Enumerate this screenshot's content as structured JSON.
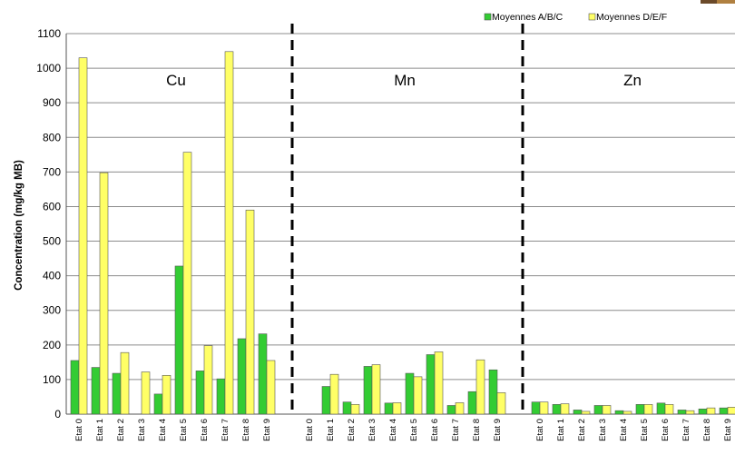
{
  "chart_data": {
    "type": "bar",
    "ylabel": "Concentration (mg/kg MB)",
    "xlabel": "",
    "ylim": [
      0,
      1100
    ],
    "y_ticks": [
      0,
      100,
      200,
      300,
      400,
      500,
      600,
      700,
      800,
      900,
      1000,
      1100
    ],
    "grid": true,
    "legend_position": "top-right",
    "colors": {
      "series_a": "#33cc33",
      "series_b": "#ffff66",
      "bar_stroke": "#555555",
      "grid": "#8c8c8c",
      "separator": "#000000"
    },
    "categories": [
      "Etat 0",
      "Etat 1",
      "Etat 2",
      "Etat 3",
      "Etat 4",
      "Etat 5",
      "Etat 6",
      "Etat 7",
      "Etat 8",
      "Etat 9"
    ],
    "groups": [
      {
        "name": "Cu",
        "series": [
          {
            "name": "Moyennes A/B/C",
            "values": [
              155,
              135,
              118,
              0,
              58,
              428,
              125,
              102,
              218,
              232
            ]
          },
          {
            "name": "Moyennes D/E/F",
            "values": [
              1030,
              698,
              178,
              122,
              112,
              757,
              198,
              1048,
              590,
              155
            ]
          }
        ]
      },
      {
        "name": "Mn",
        "series": [
          {
            "name": "Moyennes A/B/C",
            "values": [
              0,
              80,
              35,
              138,
              32,
              118,
              172,
              25,
              65,
              128
            ]
          },
          {
            "name": "Moyennes D/E/F",
            "values": [
              0,
              115,
              28,
              143,
              33,
              108,
              180,
              33,
              157,
              62
            ]
          }
        ]
      },
      {
        "name": "Zn",
        "series": [
          {
            "name": "Moyennes A/B/C",
            "values": [
              35,
              28,
              12,
              25,
              10,
              28,
              32,
              12,
              15,
              18
            ]
          },
          {
            "name": "Moyennes D/E/F",
            "values": [
              35,
              30,
              8,
              25,
              8,
              28,
              28,
              10,
              18,
              20
            ]
          }
        ]
      }
    ]
  }
}
